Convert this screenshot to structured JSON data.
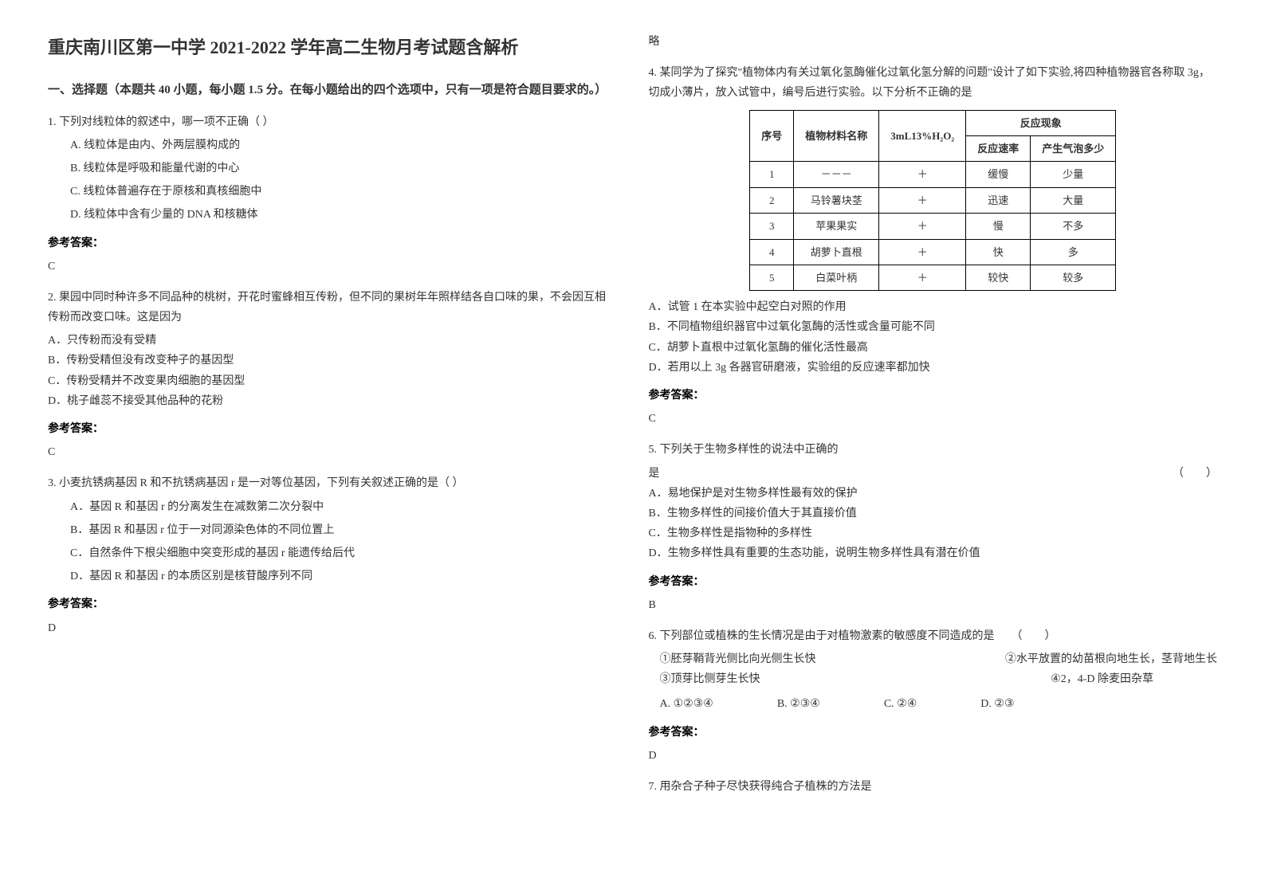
{
  "title": "重庆南川区第一中学 2021-2022 学年高二生物月考试题含解析",
  "section1_head": "一、选择题（本题共 40 小题，每小题 1.5 分。在每小题给出的四个选项中，只有一项是符合题目要求的。）",
  "answer_label": "参考答案：",
  "skip_text": "略",
  "q1": {
    "stem": "1. 下列对线粒体的叙述中，哪一项不正确（  ）",
    "a": "A. 线粒体是由内、外两层膜构成的",
    "b": "B. 线粒体是呼吸和能量代谢的中心",
    "c": "C. 线粒体普遍存在于原核和真核细胞中",
    "d": "D. 线粒体中含有少量的 DNA 和核糖体",
    "ans": "C"
  },
  "q2": {
    "stem": "2. 果园中同时种许多不同品种的桃树，开花时蜜蜂相互传粉，但不同的果树年年照样结各自口味的果，不会因互相传粉而改变口味。这是因为",
    "a": "A．只传粉而没有受精",
    "b": "B．传粉受精但没有改变种子的基因型",
    "c": "C．传粉受精并不改变果肉细胞的基因型",
    "d": "D．桃子雌蕊不接受其他品种的花粉",
    "ans": "C"
  },
  "q3": {
    "stem": "3. 小麦抗锈病基因 R 和不抗锈病基因 r 是一对等位基因，下列有关叙述正确的是（  ）",
    "a": "A．基因 R 和基因 r 的分离发生在减数第二次分裂中",
    "b": "B．基因 R 和基因 r 位于一对同源染色体的不同位置上",
    "c": "C．自然条件下根尖细胞中突变形成的基因 r 能遗传给后代",
    "d": "D．基因 R 和基因 r 的本质区别是核苷酸序列不同",
    "ans": "D"
  },
  "q4": {
    "intro": "4. 某同学为了探究\"植物体内有关过氧化氢酶催化过氧化氢分解的问题\"设计了如下实验,将四种植物器官各称取 3g，切成小薄片，放入试管中，编号后进行实验。以下分析不正确的是",
    "a": "A．试管 1 在本实验中起空白对照的作用",
    "b": "B．不同植物组织器官中过氧化氢酶的活性或含量可能不同",
    "c": "C．胡萝卜直根中过氧化氢酶的催化活性最高",
    "d": "D．若用以上 3g 各器官研磨液，实验组的反应速率都加快",
    "ans": "C",
    "table": {
      "head_seq": "序号",
      "head_name": "植物材料名称",
      "head_h2o2": "3mL13%H₂O₂",
      "head_phenom": "反应现象",
      "head_rate": "反应速率",
      "head_bubble": "产生气泡多少",
      "rows": [
        {
          "seq": "1",
          "name": "－－－",
          "h": "＋",
          "rate": "缓慢",
          "bub": "少量"
        },
        {
          "seq": "2",
          "name": "马铃薯块茎",
          "h": "＋",
          "rate": "迅速",
          "bub": "大量"
        },
        {
          "seq": "3",
          "name": "苹果果实",
          "h": "＋",
          "rate": "慢",
          "bub": "不多"
        },
        {
          "seq": "4",
          "name": "胡萝卜直根",
          "h": "＋",
          "rate": "快",
          "bub": "多"
        },
        {
          "seq": "5",
          "name": "白菜叶柄",
          "h": "＋",
          "rate": "较快",
          "bub": "较多"
        }
      ]
    }
  },
  "q5": {
    "stem_a": "5. 下列关于生物多样性的说法中正确的",
    "stem_b": "是",
    "paren": "（　　）",
    "a": "A．易地保护是对生物多样性最有效的保护",
    "b": "B．生物多样性的间接价值大于其直接价值",
    "c": "C．生物多样性是指物种的多样性",
    "d": "D．生物多样性具有重要的生态功能，说明生物多样性具有潜在价值",
    "ans": "B"
  },
  "q6": {
    "stem": "6. 下列部位或植株的生长情况是由于对植物激素的敏感度不同造成的是　　（　　）",
    "i1": "①胚芽鞘背光侧比向光侧生长快",
    "i2": "②水平放置的幼苗根向地生长，茎背地生长",
    "i3": "③顶芽比侧芽生长快",
    "i4": "④2，4-D 除麦田杂草",
    "oa": "A. ①②③④",
    "ob": "B. ②③④",
    "oc": "C. ②④",
    "od": "D. ②③",
    "ans": "D"
  },
  "q7": {
    "stem": "7. 用杂合子种子尽快获得纯合子植株的方法是"
  }
}
